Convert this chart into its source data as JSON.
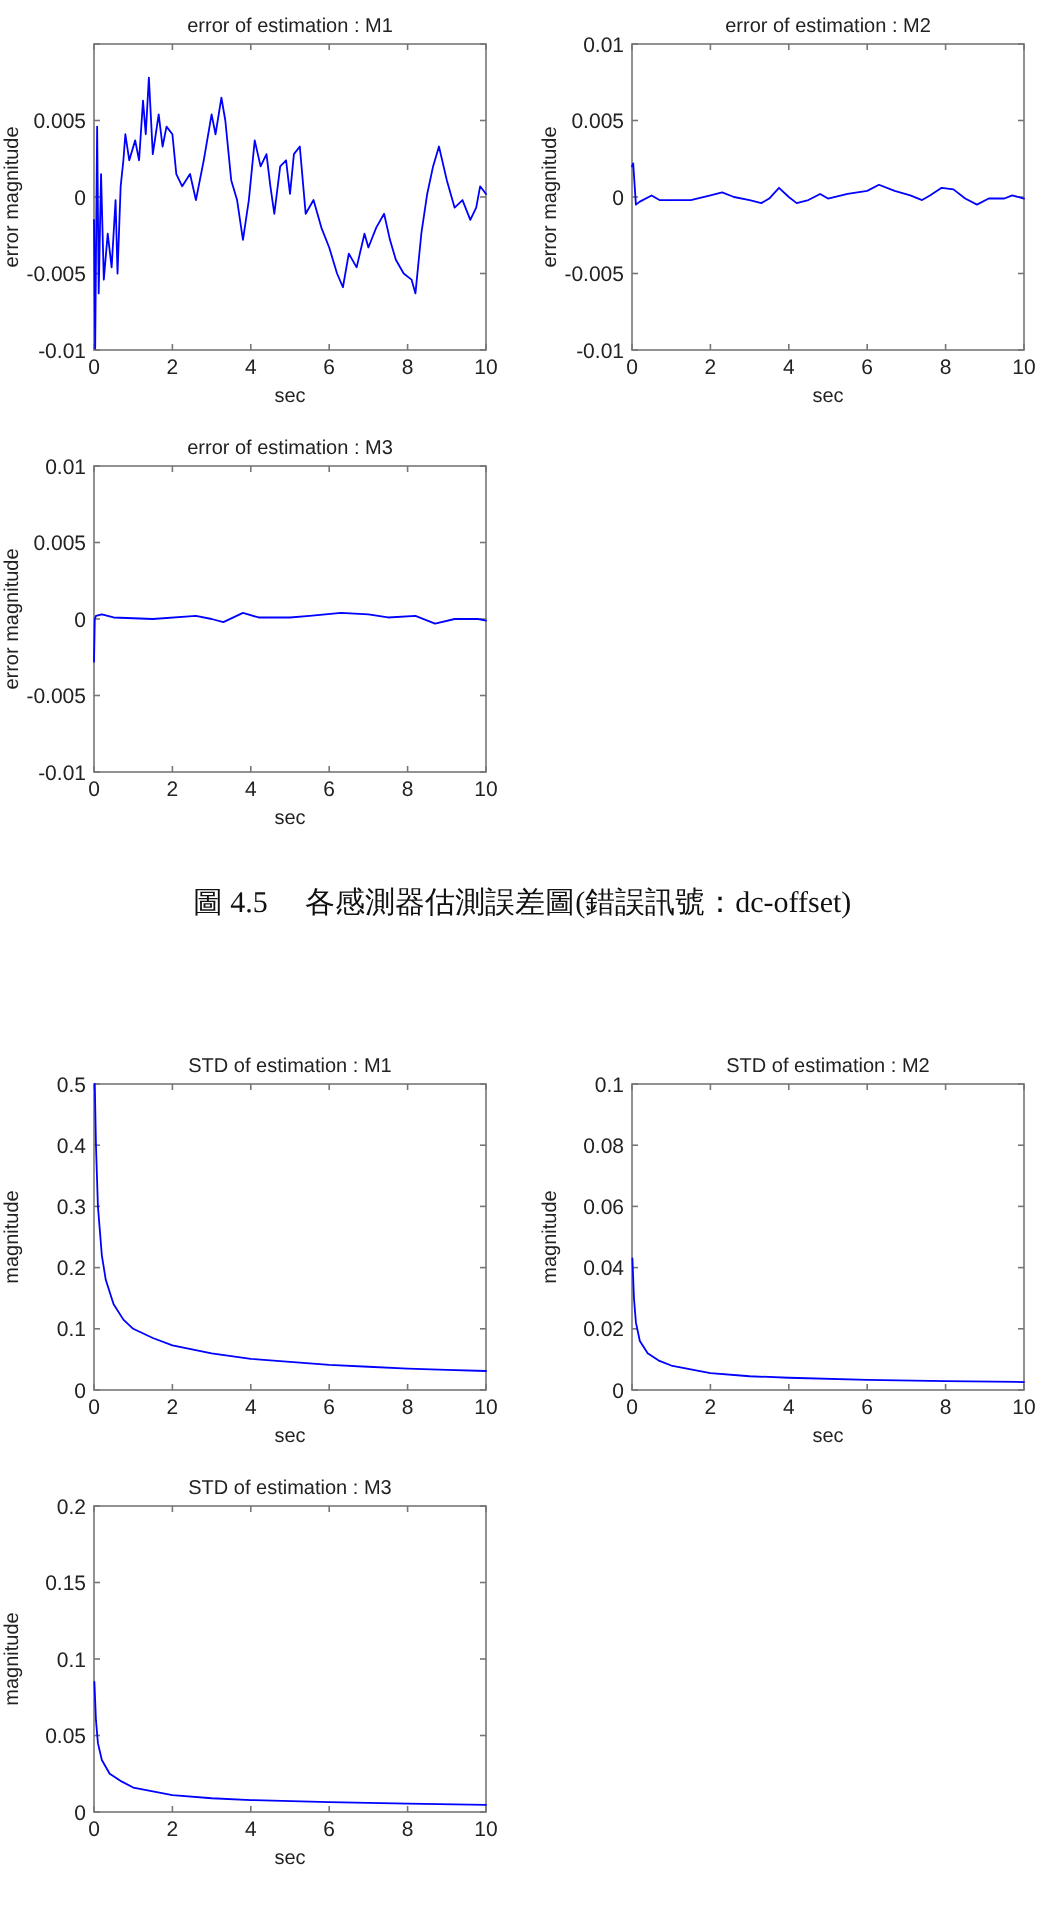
{
  "chart_data": [
    {
      "type": "line",
      "title": "error of estimation : M1",
      "xlabel": "sec",
      "ylabel": "error magnitude",
      "color": "#0000ff",
      "xlim": [
        0,
        10
      ],
      "ylim": [
        -0.01,
        0.01
      ],
      "xticks": [
        0,
        2,
        4,
        6,
        8,
        10
      ],
      "yticks": [
        -0.01,
        -0.005,
        0,
        0.005,
        {
          "value": 0.01,
          "label": null
        }
      ],
      "x": [
        0,
        0.03,
        0.08,
        0.12,
        0.18,
        0.25,
        0.35,
        0.45,
        0.55,
        0.6,
        0.68,
        0.75,
        0.8,
        0.9,
        1.05,
        1.15,
        1.25,
        1.32,
        1.4,
        1.5,
        1.65,
        1.75,
        1.85,
        2.0,
        2.1,
        2.25,
        2.45,
        2.6,
        2.8,
        3.0,
        3.1,
        3.25,
        3.35,
        3.5,
        3.65,
        3.8,
        3.95,
        4.1,
        4.25,
        4.4,
        4.5,
        4.6,
        4.75,
        4.9,
        5.0,
        5.1,
        5.25,
        5.4,
        5.6,
        5.8,
        6.0,
        6.2,
        6.35,
        6.5,
        6.7,
        6.9,
        7.0,
        7.2,
        7.4,
        7.55,
        7.7,
        7.9,
        8.1,
        8.2,
        8.35,
        8.5,
        8.65,
        8.8,
        9.0,
        9.2,
        9.4,
        9.6,
        9.75,
        9.85,
        10
      ],
      "values": [
        -0.0015,
        -0.0099,
        0.0046,
        -0.0063,
        0.0015,
        -0.0054,
        -0.0024,
        -0.0046,
        -0.0002,
        -0.005,
        0.0007,
        0.0024,
        0.0041,
        0.0024,
        0.0037,
        0.0024,
        0.0063,
        0.0041,
        0.0078,
        0.0028,
        0.0054,
        0.0033,
        0.0046,
        0.0041,
        0.0015,
        0.0007,
        0.0015,
        -0.0002,
        0.0024,
        0.0054,
        0.0041,
        0.0065,
        0.005,
        0.0011,
        -0.0002,
        -0.0028,
        -0.0002,
        0.0037,
        0.002,
        0.0028,
        0.0007,
        -0.0011,
        0.002,
        0.0024,
        0.0002,
        0.0028,
        0.0033,
        -0.0011,
        -0.0002,
        -0.002,
        -0.0033,
        -0.005,
        -0.0059,
        -0.0037,
        -0.0046,
        -0.0024,
        -0.0033,
        -0.002,
        -0.0011,
        -0.0028,
        -0.0041,
        -0.005,
        -0.0054,
        -0.0063,
        -0.0024,
        0.0002,
        0.002,
        0.0033,
        0.0011,
        -0.0007,
        -0.0002,
        -0.0015,
        -0.0007,
        0.0007,
        0.0002
      ]
    },
    {
      "type": "line",
      "title": "error of estimation : M2",
      "xlabel": "sec",
      "ylabel": "error magnitude",
      "color": "#0000ff",
      "xlim": [
        0,
        10
      ],
      "ylim": [
        -0.01,
        0.01
      ],
      "xticks": [
        0,
        2,
        4,
        6,
        8,
        10
      ],
      "yticks": [
        -0.01,
        -0.005,
        0,
        0.005,
        0.01
      ],
      "x": [
        0,
        0.03,
        0.1,
        0.2,
        0.5,
        0.7,
        1.5,
        2.0,
        2.3,
        2.6,
        3.0,
        3.3,
        3.5,
        3.75,
        4.0,
        4.2,
        4.5,
        4.8,
        5.0,
        5.5,
        6.0,
        6.3,
        6.7,
        7.1,
        7.4,
        7.6,
        7.9,
        8.2,
        8.5,
        8.8,
        9.1,
        9.5,
        9.7,
        10
      ],
      "values": [
        0.002,
        0.0022,
        -0.0005,
        -0.0003,
        0.0001,
        -0.0002,
        -0.0002,
        0.0001,
        0.0003,
        0.0,
        -0.0002,
        -0.0004,
        -0.0001,
        0.0006,
        0.0,
        -0.0004,
        -0.0002,
        0.0002,
        -0.0001,
        0.0002,
        0.0004,
        0.0008,
        0.0004,
        0.0001,
        -0.0002,
        0.0001,
        0.0006,
        0.0005,
        -0.0001,
        -0.0005,
        -0.0001,
        -0.0001,
        0.0001,
        -0.0001
      ]
    },
    {
      "type": "line",
      "title": "error of estimation : M3",
      "xlabel": "sec",
      "ylabel": "error magnitude",
      "color": "#0000ff",
      "xlim": [
        0,
        10
      ],
      "ylim": [
        -0.01,
        0.01
      ],
      "xticks": [
        0,
        2,
        4,
        6,
        8,
        10
      ],
      "yticks": [
        -0.01,
        -0.005,
        0,
        0.005,
        0.01
      ],
      "x": [
        0,
        0.02,
        0.05,
        0.2,
        0.5,
        1.5,
        2.6,
        3.0,
        3.3,
        3.8,
        4.2,
        5.0,
        5.5,
        6.3,
        7.0,
        7.5,
        8.2,
        8.7,
        9.2,
        9.8,
        10
      ],
      "values": [
        -0.0028,
        0.0,
        0.0002,
        0.0003,
        0.0001,
        0.0,
        0.0002,
        0.0,
        -0.0002,
        0.0004,
        0.0001,
        0.0001,
        0.0002,
        0.0004,
        0.0003,
        0.0001,
        0.0002,
        -0.0003,
        0.0,
        0.0,
        -0.0001
      ],
      "annotations": [
        "圖 4.5　 各感測器估測誤差圖(錯誤訊號：dc-offset)"
      ]
    },
    {
      "type": "line",
      "title": "STD of estimation : M1",
      "xlabel": "sec",
      "ylabel": "magnitude",
      "color": "#0000ff",
      "xlim": [
        0,
        10
      ],
      "ylim": [
        0,
        0.5
      ],
      "xticks": [
        0,
        2,
        4,
        6,
        8,
        10
      ],
      "yticks": [
        0,
        0.1,
        0.2,
        0.3,
        0.4,
        0.5
      ],
      "x": [
        0.02,
        0.05,
        0.1,
        0.2,
        0.3,
        0.5,
        0.75,
        1,
        1.5,
        2,
        3,
        4,
        5,
        6,
        7,
        8,
        9,
        10
      ],
      "values": [
        0.5,
        0.4,
        0.3,
        0.22,
        0.18,
        0.14,
        0.115,
        0.1,
        0.085,
        0.073,
        0.06,
        0.051,
        0.046,
        0.041,
        0.038,
        0.035,
        0.033,
        0.031
      ]
    },
    {
      "type": "line",
      "title": "STD of estimation : M2",
      "xlabel": "sec",
      "ylabel": "magnitude",
      "color": "#0000ff",
      "xlim": [
        0,
        10
      ],
      "ylim": [
        0,
        0.1
      ],
      "xticks": [
        0,
        2,
        4,
        6,
        8,
        10
      ],
      "yticks": [
        0,
        0.02,
        0.04,
        0.06,
        0.08,
        0.1
      ],
      "x": [
        0.01,
        0.05,
        0.1,
        0.2,
        0.4,
        0.7,
        1,
        2,
        3,
        4,
        6,
        8,
        10
      ],
      "values": [
        0.043,
        0.03,
        0.022,
        0.016,
        0.012,
        0.0095,
        0.008,
        0.0055,
        0.0045,
        0.004,
        0.0033,
        0.0029,
        0.0026
      ]
    },
    {
      "type": "line",
      "title": "STD of estimation : M3",
      "xlabel": "sec",
      "ylabel": "magnitude",
      "color": "#0000ff",
      "xlim": [
        0,
        10
      ],
      "ylim": [
        0,
        0.2
      ],
      "xticks": [
        0,
        2,
        4,
        6,
        8,
        10
      ],
      "yticks": [
        0,
        0.05,
        0.1,
        0.15,
        0.2
      ],
      "x": [
        0.01,
        0.05,
        0.1,
        0.2,
        0.4,
        0.7,
        1,
        2,
        3,
        4,
        6,
        8,
        10
      ],
      "values": [
        0.085,
        0.06,
        0.045,
        0.034,
        0.025,
        0.02,
        0.016,
        0.011,
        0.009,
        0.0078,
        0.0065,
        0.0055,
        0.0047
      ]
    }
  ]
}
